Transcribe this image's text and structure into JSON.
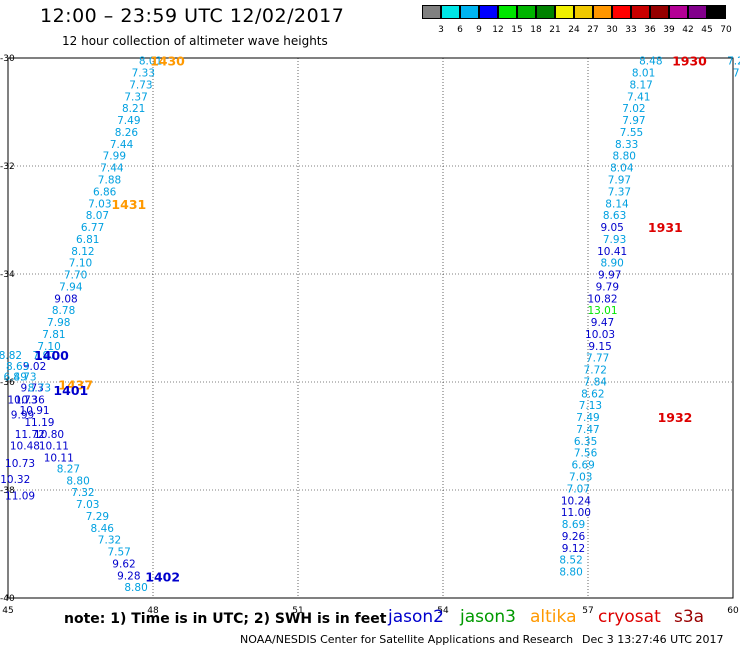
{
  "header": {
    "title": "12:00 – 23:59 UTC 12/02/2017",
    "subtitle": "12 hour collection of altimeter wave heights"
  },
  "colorbar": {
    "colors": [
      "#808080",
      "#00e6e6",
      "#00b4f0",
      "#0000ff",
      "#00e600",
      "#00b400",
      "#008200",
      "#f0f000",
      "#f0c800",
      "#ff9600",
      "#ff0000",
      "#c80000",
      "#960000",
      "#b40096",
      "#82008c",
      "#000000"
    ],
    "labels": [
      "3",
      "6",
      "9",
      "12",
      "15",
      "18",
      "21",
      "24",
      "27",
      "30",
      "33",
      "36",
      "39",
      "42",
      "45",
      "70",
      "(ft)"
    ]
  },
  "footer": {
    "note": "note:  1) Time is in UTC;  2) SWH is in feet",
    "credit": "NOAA/NESDIS Center for Satellite Applications and Research",
    "created": "Dec  3 13:27:46 UTC 2017"
  },
  "legend": [
    {
      "name": "jason2",
      "color": "#0000cc"
    },
    {
      "name": "jason3",
      "color": "#009900"
    },
    {
      "name": "altika",
      "color": "#ff9900"
    },
    {
      "name": "cryosat",
      "color": "#dd0000"
    },
    {
      "name": "s3a",
      "color": "#990000"
    }
  ],
  "chart_data": {
    "type": "scatter",
    "x_ticks": [
      "45",
      "48",
      "51",
      "54",
      "57",
      "60"
    ],
    "y_ticks": [
      "-30",
      "-32",
      "-34",
      "-36",
      "-38",
      "-40"
    ],
    "xlim": [
      45,
      60
    ],
    "ylim": [
      -40,
      -30
    ],
    "grid": true,
    "points": [
      {
        "x": 47.95,
        "y": -30.05,
        "label": "8.01",
        "c": "#00a0e0"
      },
      {
        "x": 47.8,
        "y": -30.27,
        "label": "7.33",
        "c": "#00a0e0"
      },
      {
        "x": 47.75,
        "y": -30.49,
        "label": "7.73",
        "c": "#00a0e0"
      },
      {
        "x": 47.65,
        "y": -30.71,
        "label": "7.37",
        "c": "#00a0e0"
      },
      {
        "x": 47.6,
        "y": -30.93,
        "label": "8.21",
        "c": "#00a0e0"
      },
      {
        "x": 47.5,
        "y": -31.15,
        "label": "7.49",
        "c": "#00a0e0"
      },
      {
        "x": 47.45,
        "y": -31.37,
        "label": "8.26",
        "c": "#00a0e0"
      },
      {
        "x": 47.35,
        "y": -31.59,
        "label": "7.44",
        "c": "#00a0e0"
      },
      {
        "x": 47.2,
        "y": -31.81,
        "label": "7.99",
        "c": "#00a0e0"
      },
      {
        "x": 47.15,
        "y": -32.03,
        "label": "7.44",
        "c": "#00a0e0"
      },
      {
        "x": 47.1,
        "y": -32.25,
        "label": "7.88",
        "c": "#00a0e0"
      },
      {
        "x": 47.0,
        "y": -32.47,
        "label": "6.86",
        "c": "#00a0e0"
      },
      {
        "x": 46.9,
        "y": -32.69,
        "label": "7.03",
        "c": "#00a0e0"
      },
      {
        "x": 46.85,
        "y": -32.91,
        "label": "8.07",
        "c": "#00a0e0"
      },
      {
        "x": 46.75,
        "y": -33.13,
        "label": "6.77",
        "c": "#00a0e0"
      },
      {
        "x": 46.65,
        "y": -33.35,
        "label": "6.81",
        "c": "#00a0e0"
      },
      {
        "x": 46.55,
        "y": -33.57,
        "label": "8.12",
        "c": "#00a0e0"
      },
      {
        "x": 46.5,
        "y": -33.79,
        "label": "7.10",
        "c": "#00a0e0"
      },
      {
        "x": 46.4,
        "y": -34.01,
        "label": "7.70",
        "c": "#00a0e0"
      },
      {
        "x": 46.3,
        "y": -34.23,
        "label": "7.94",
        "c": "#00a0e0"
      },
      {
        "x": 46.2,
        "y": -34.45,
        "label": "9.08",
        "c": "#0000cc"
      },
      {
        "x": 46.15,
        "y": -34.67,
        "label": "8.78",
        "c": "#00a0e0"
      },
      {
        "x": 46.05,
        "y": -34.89,
        "label": "7.98",
        "c": "#00a0e0"
      },
      {
        "x": 45.95,
        "y": -35.11,
        "label": "7.81",
        "c": "#00a0e0"
      },
      {
        "x": 45.85,
        "y": -35.33,
        "label": "7.10",
        "c": "#00a0e0"
      },
      {
        "x": 45.75,
        "y": -35.5,
        "label": "7.97",
        "c": "#00a0e0"
      },
      {
        "x": 45.55,
        "y": -35.7,
        "label": "9.02",
        "c": "#0000cc"
      },
      {
        "x": 45.35,
        "y": -35.9,
        "label": "8.73",
        "c": "#00a0e0"
      },
      {
        "x": 45.5,
        "y": -36.1,
        "label": "9.73",
        "c": "#0000cc"
      },
      {
        "x": 45.45,
        "y": -36.32,
        "label": "10.36",
        "c": "#0000cc"
      },
      {
        "x": 45.55,
        "y": -36.52,
        "label": "10.91",
        "c": "#0000cc"
      },
      {
        "x": 45.65,
        "y": -36.74,
        "label": "11.19",
        "c": "#0000cc"
      },
      {
        "x": 45.45,
        "y": -36.96,
        "label": "11.72",
        "c": "#0000cc"
      },
      {
        "x": 45.85,
        "y": -36.96,
        "label": "10.80",
        "c": "#0000cc"
      },
      {
        "x": 45.35,
        "y": -37.18,
        "label": "10.48",
        "c": "#0000cc"
      },
      {
        "x": 45.95,
        "y": -37.18,
        "label": "10.11",
        "c": "#0000cc"
      },
      {
        "x": 46.05,
        "y": -37.4,
        "label": "10.11",
        "c": "#0000cc"
      },
      {
        "x": 45.25,
        "y": -37.5,
        "label": "10.73",
        "c": "#0000cc"
      },
      {
        "x": 46.25,
        "y": -37.6,
        "label": "8.27",
        "c": "#00a0e0"
      },
      {
        "x": 45.15,
        "y": -37.8,
        "label": "10.32",
        "c": "#0000cc"
      },
      {
        "x": 46.45,
        "y": -37.82,
        "label": "8.80",
        "c": "#00a0e0"
      },
      {
        "x": 46.55,
        "y": -38.04,
        "label": "7.32",
        "c": "#00a0e0"
      },
      {
        "x": 45.25,
        "y": -38.1,
        "label": "11.09",
        "c": "#0000cc"
      },
      {
        "x": 46.65,
        "y": -38.26,
        "label": "7.03",
        "c": "#00a0e0"
      },
      {
        "x": 46.85,
        "y": -38.48,
        "label": "7.29",
        "c": "#00a0e0"
      },
      {
        "x": 46.95,
        "y": -38.7,
        "label": "8.46",
        "c": "#00a0e0"
      },
      {
        "x": 47.1,
        "y": -38.92,
        "label": "7.32",
        "c": "#00a0e0"
      },
      {
        "x": 47.3,
        "y": -39.14,
        "label": "7.57",
        "c": "#00a0e0"
      },
      {
        "x": 47.4,
        "y": -39.36,
        "label": "9.62",
        "c": "#0000cc"
      },
      {
        "x": 47.5,
        "y": -39.58,
        "label": "9.28",
        "c": "#0000cc"
      },
      {
        "x": 47.65,
        "y": -39.8,
        "label": "8.80",
        "c": "#00a0e0"
      },
      {
        "x": 45.05,
        "y": -35.5,
        "label": "8.82",
        "c": "#00a0e0"
      },
      {
        "x": 45.2,
        "y": -35.7,
        "label": "8.63",
        "c": "#00a0e0"
      },
      {
        "x": 45.15,
        "y": -35.9,
        "label": "6.49",
        "c": "#00a0e0"
      },
      {
        "x": 45.65,
        "y": -36.1,
        "label": "8.73",
        "c": "#00a0e0"
      },
      {
        "x": 45.3,
        "y": -36.32,
        "label": "10.73",
        "c": "#0000cc"
      },
      {
        "x": 45.3,
        "y": -36.6,
        "label": "9.99",
        "c": "#0000cc"
      },
      {
        "x": 58.3,
        "y": -30.05,
        "label": "8.48",
        "c": "#00a0e0"
      },
      {
        "x": 58.15,
        "y": -30.27,
        "label": "8.01",
        "c": "#00a0e0"
      },
      {
        "x": 58.1,
        "y": -30.49,
        "label": "8.17",
        "c": "#00a0e0"
      },
      {
        "x": 58.05,
        "y": -30.71,
        "label": "7.41",
        "c": "#00a0e0"
      },
      {
        "x": 57.95,
        "y": -30.93,
        "label": "7.02",
        "c": "#00a0e0"
      },
      {
        "x": 57.95,
        "y": -31.15,
        "label": "7.97",
        "c": "#00a0e0"
      },
      {
        "x": 57.9,
        "y": -31.37,
        "label": "7.55",
        "c": "#00a0e0"
      },
      {
        "x": 57.8,
        "y": -31.59,
        "label": "8.33",
        "c": "#00a0e0"
      },
      {
        "x": 57.75,
        "y": -31.81,
        "label": "8.80",
        "c": "#00a0e0"
      },
      {
        "x": 57.7,
        "y": -32.03,
        "label": "8.04",
        "c": "#00a0e0"
      },
      {
        "x": 57.65,
        "y": -32.25,
        "label": "7.97",
        "c": "#00a0e0"
      },
      {
        "x": 57.65,
        "y": -32.47,
        "label": "7.37",
        "c": "#00a0e0"
      },
      {
        "x": 57.6,
        "y": -32.69,
        "label": "8.14",
        "c": "#00a0e0"
      },
      {
        "x": 57.55,
        "y": -32.91,
        "label": "8.63",
        "c": "#00a0e0"
      },
      {
        "x": 57.5,
        "y": -33.13,
        "label": "9.05",
        "c": "#0000cc"
      },
      {
        "x": 57.55,
        "y": -33.35,
        "label": "7.93",
        "c": "#00a0e0"
      },
      {
        "x": 57.5,
        "y": -33.57,
        "label": "10.41",
        "c": "#0000cc"
      },
      {
        "x": 57.5,
        "y": -33.79,
        "label": "8.90",
        "c": "#00a0e0"
      },
      {
        "x": 57.45,
        "y": -34.01,
        "label": "9.97",
        "c": "#0000cc"
      },
      {
        "x": 57.4,
        "y": -34.23,
        "label": "9.79",
        "c": "#0000cc"
      },
      {
        "x": 57.3,
        "y": -34.45,
        "label": "10.82",
        "c": "#0000cc"
      },
      {
        "x": 57.3,
        "y": -34.67,
        "label": "13.01",
        "c": "#00e600"
      },
      {
        "x": 57.3,
        "y": -34.89,
        "label": "9.47",
        "c": "#0000cc"
      },
      {
        "x": 57.25,
        "y": -35.11,
        "label": "10.03",
        "c": "#0000cc"
      },
      {
        "x": 57.25,
        "y": -35.33,
        "label": "9.15",
        "c": "#0000cc"
      },
      {
        "x": 57.2,
        "y": -35.55,
        "label": "7.77",
        "c": "#00a0e0"
      },
      {
        "x": 57.15,
        "y": -35.77,
        "label": "7.72",
        "c": "#00a0e0"
      },
      {
        "x": 57.15,
        "y": -35.99,
        "label": "7.84",
        "c": "#00a0e0"
      },
      {
        "x": 57.1,
        "y": -36.21,
        "label": "8.62",
        "c": "#00a0e0"
      },
      {
        "x": 57.05,
        "y": -36.43,
        "label": "7.13",
        "c": "#00a0e0"
      },
      {
        "x": 57.0,
        "y": -36.65,
        "label": "7.49",
        "c": "#00a0e0"
      },
      {
        "x": 57.0,
        "y": -36.87,
        "label": "7.47",
        "c": "#00a0e0"
      },
      {
        "x": 56.95,
        "y": -37.09,
        "label": "6.35",
        "c": "#00a0e0"
      },
      {
        "x": 56.95,
        "y": -37.31,
        "label": "7.56",
        "c": "#00a0e0"
      },
      {
        "x": 56.9,
        "y": -37.53,
        "label": "6.69",
        "c": "#00a0e0"
      },
      {
        "x": 56.85,
        "y": -37.75,
        "label": "7.03",
        "c": "#00a0e0"
      },
      {
        "x": 56.8,
        "y": -37.97,
        "label": "7.07",
        "c": "#00a0e0"
      },
      {
        "x": 56.75,
        "y": -38.19,
        "label": "10.24",
        "c": "#0000cc"
      },
      {
        "x": 56.75,
        "y": -38.41,
        "label": "11.00",
        "c": "#0000cc"
      },
      {
        "x": 56.7,
        "y": -38.63,
        "label": "8.69",
        "c": "#00a0e0"
      },
      {
        "x": 56.7,
        "y": -38.85,
        "label": "9.26",
        "c": "#0000cc"
      },
      {
        "x": 56.7,
        "y": -39.07,
        "label": "9.12",
        "c": "#0000cc"
      },
      {
        "x": 56.65,
        "y": -39.29,
        "label": "8.52",
        "c": "#00a0e0"
      },
      {
        "x": 56.65,
        "y": -39.51,
        "label": "8.80",
        "c": "#00a0e0"
      },
      {
        "x": 60.05,
        "y": -30.05,
        "label": "7.2",
        "c": "#00a0e0"
      },
      {
        "x": 60.1,
        "y": -30.27,
        "label": "7.",
        "c": "#00a0e0"
      },
      {
        "x": 60.2,
        "y": -30.49,
        "label": "6",
        "c": "#00a0e0"
      }
    ],
    "time_labels": [
      {
        "x": 48.3,
        "y": -30.05,
        "label": "1430",
        "c": "#ff9900"
      },
      {
        "x": 47.5,
        "y": -32.7,
        "label": "1431",
        "c": "#ff9900"
      },
      {
        "x": 45.9,
        "y": -35.5,
        "label": "1400",
        "c": "#0000cc"
      },
      {
        "x": 46.4,
        "y": -36.05,
        "label": "1437",
        "c": "#ff9900"
      },
      {
        "x": 46.3,
        "y": -36.15,
        "label": "1401",
        "c": "#0000cc"
      },
      {
        "x": 48.2,
        "y": -39.6,
        "label": "1402",
        "c": "#0000cc"
      },
      {
        "x": 59.1,
        "y": -30.05,
        "label": "1930",
        "c": "#dd0000"
      },
      {
        "x": 58.6,
        "y": -33.13,
        "label": "1931",
        "c": "#dd0000"
      },
      {
        "x": 58.8,
        "y": -36.65,
        "label": "1932",
        "c": "#dd0000"
      }
    ]
  }
}
